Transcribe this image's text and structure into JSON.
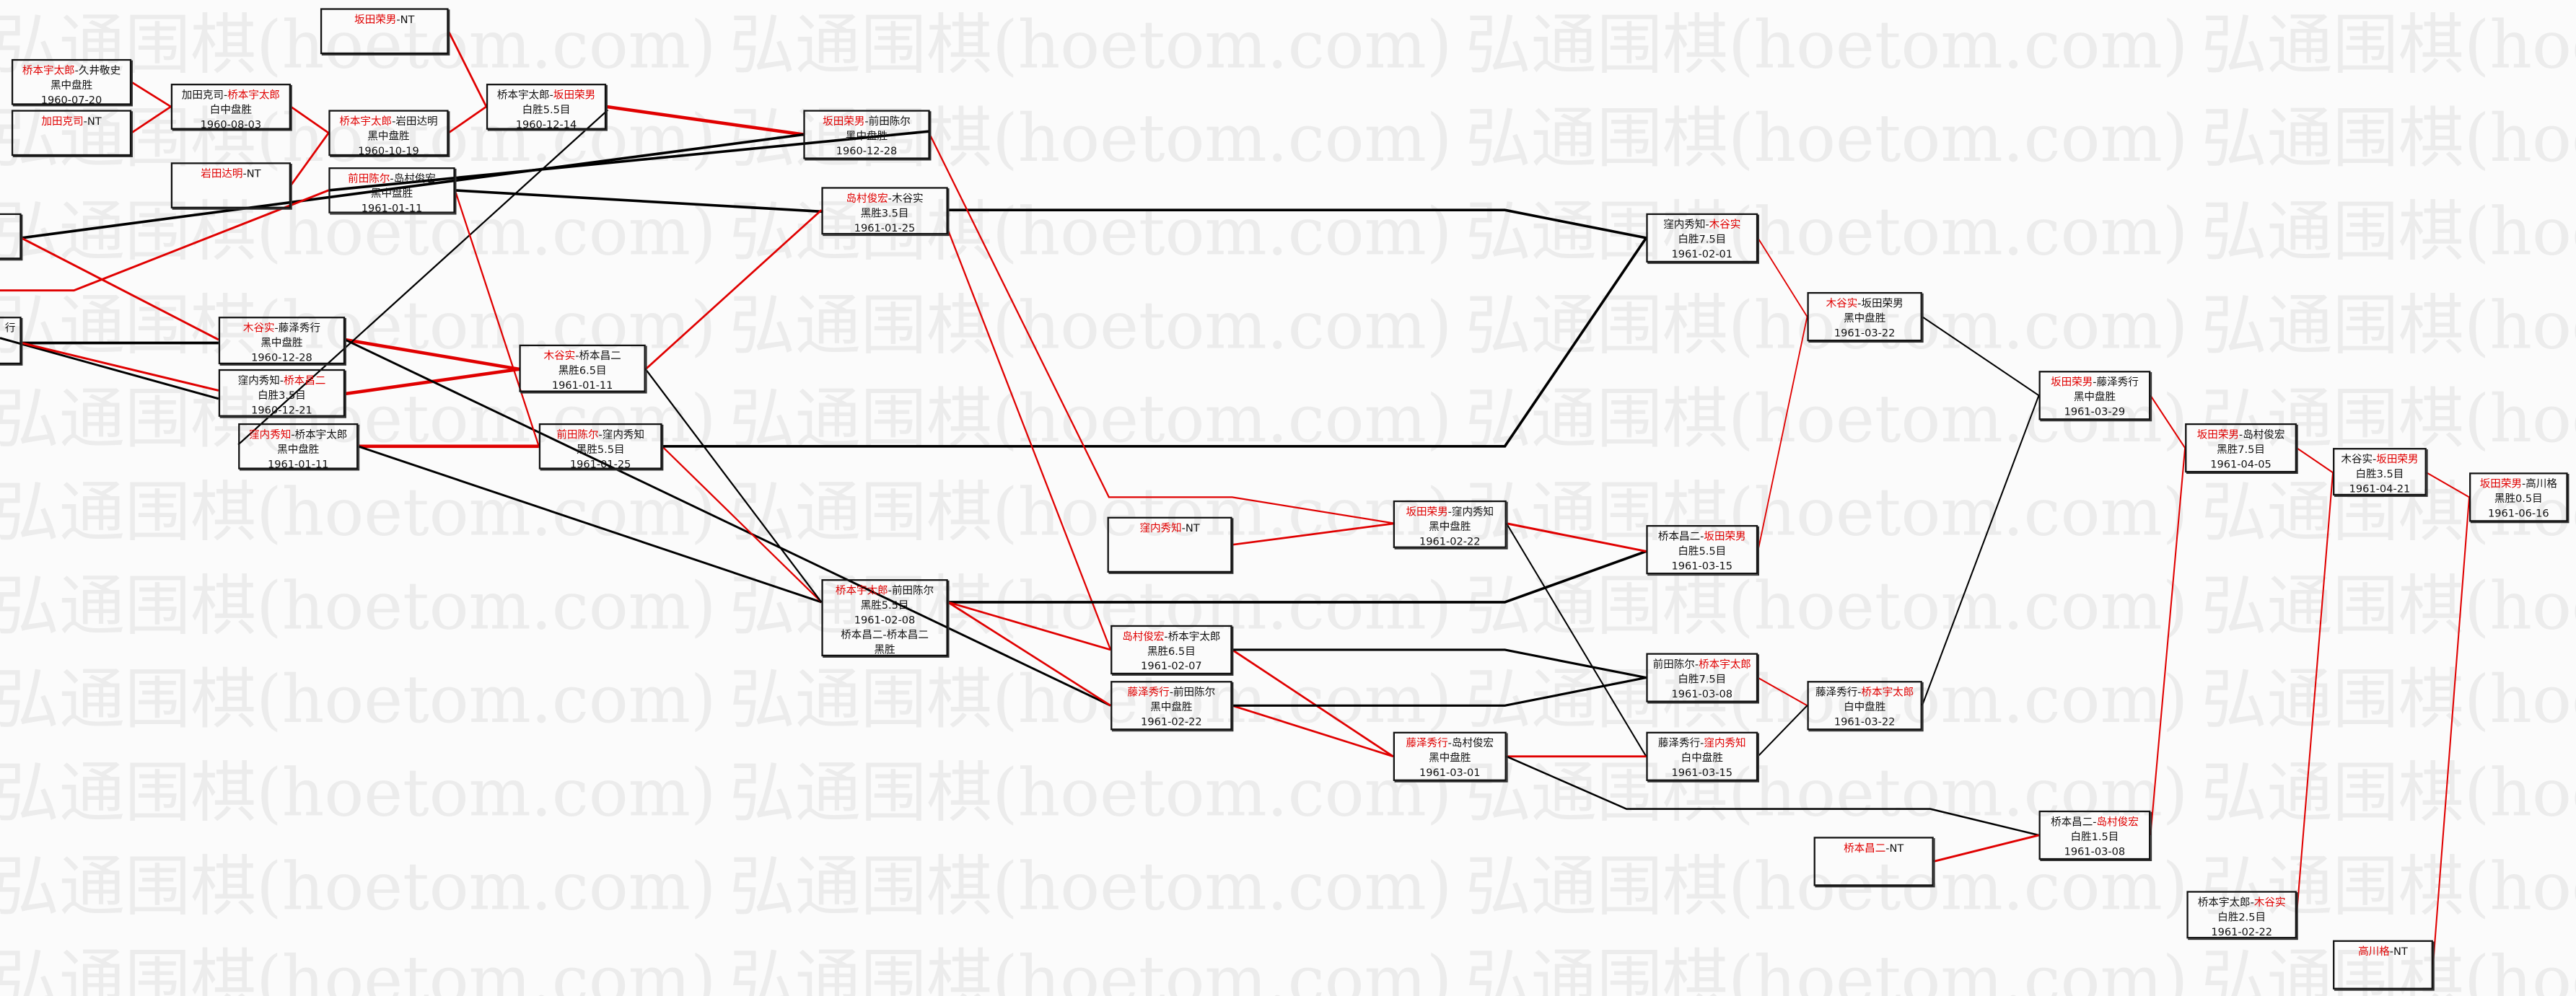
{
  "watermark": "弘通围棋(hoetom.com)",
  "colors": {
    "winner": "#e00000",
    "loser_line": "#000000",
    "winner_line": "#e00000"
  },
  "boxes": [
    {
      "id": "A",
      "nt": "坂田荣男"
    },
    {
      "id": "B",
      "a": "桥本宇太郎",
      "b": "久井敬史",
      "win": "a",
      "result": "黑中盘胜",
      "date": "1960-07-20"
    },
    {
      "id": "C",
      "nt": "加田克司"
    },
    {
      "id": "D",
      "a": "加田克司",
      "b": "桥本宇太郎",
      "win": "b",
      "result": "白中盘胜",
      "date": "1960-08-03"
    },
    {
      "id": "E",
      "a": "桥本宇太郎",
      "b": "岩田达明",
      "win": "a",
      "result": "黑中盘胜",
      "date": "1960-10-19"
    },
    {
      "id": "G",
      "nt": "岩田达明"
    },
    {
      "id": "F",
      "a": "前田陈尔",
      "b": "岛村俊宏",
      "win": "a",
      "result": "黑中盘胜",
      "date": "1961-01-11"
    },
    {
      "id": "H",
      "a": "桥本宇太郎",
      "b": "坂田荣男",
      "win": "b",
      "result": "白胜5.5目",
      "date": "1960-12-14"
    },
    {
      "id": "I",
      "a": "坂田荣男",
      "b": "前田陈尔",
      "win": "a",
      "result": "黑中盘胜",
      "date": "1960-12-28"
    },
    {
      "id": "J",
      "a": "岛村俊宏",
      "b": "木谷实",
      "win": "a",
      "result": "黑胜3.5目",
      "date": "1961-01-25"
    },
    {
      "id": "K"
    },
    {
      "id": "L",
      "partial": "行"
    },
    {
      "id": "M",
      "a": "木谷实",
      "b": "藤泽秀行",
      "win": "a",
      "result": "黑中盘胜",
      "date": "1960-12-28"
    },
    {
      "id": "N",
      "a": "窪内秀知",
      "b": "桥本昌二",
      "win": "b",
      "result": "白胜3.5目",
      "date": "1960-12-21"
    },
    {
      "id": "O",
      "a": "窪内秀知",
      "b": "桥本宇太郎",
      "win": "a",
      "result": "黑中盘胜",
      "date": "1961-01-11"
    },
    {
      "id": "P",
      "a": "木谷实",
      "b": "桥本昌二",
      "win": "a",
      "result": "黑胜6.5目",
      "date": "1961-01-11"
    },
    {
      "id": "Q",
      "a": "前田陈尔",
      "b": "窪内秀知",
      "win": "a",
      "result": "黑胜5.5目",
      "date": "1961-01-25"
    },
    {
      "id": "R",
      "a": "桥本宇太郎",
      "b": "前田陈尔",
      "win": "a",
      "result": "黑胜5.5目",
      "date": "1961-02-08",
      "overlay_a": "桥本昌二",
      "overlay_b": "桥本昌二",
      "overlay_result": "黑胜"
    },
    {
      "id": "S",
      "nt": "窪内秀知"
    },
    {
      "id": "T",
      "a": "坂田荣男",
      "b": "窪内秀知",
      "win": "a",
      "result": "黑中盘胜",
      "date": "1961-02-22"
    },
    {
      "id": "U",
      "a": "岛村俊宏",
      "b": "桥本宇太郎",
      "win": "a",
      "result": "黑胜6.5目",
      "date": "1961-02-07"
    },
    {
      "id": "V",
      "a": "藤泽秀行",
      "b": "前田陈尔",
      "win": "a",
      "result": "黑中盘胜",
      "date": "1961-02-22"
    },
    {
      "id": "W",
      "a": "藤泽秀行",
      "b": "岛村俊宏",
      "win": "a",
      "result": "黑中盘胜",
      "date": "1961-03-01"
    },
    {
      "id": "X",
      "a": "窪内秀知",
      "b": "木谷实",
      "win": "b",
      "result": "白胜7.5目",
      "date": "1961-02-01"
    },
    {
      "id": "Y",
      "a": "木谷实",
      "b": "坂田荣男",
      "win": "a",
      "result": "黑中盘胜",
      "date": "1961-03-22"
    },
    {
      "id": "Z",
      "a": "桥本昌二",
      "b": "坂田荣男",
      "win": "b",
      "result": "白胜5.5目",
      "date": "1961-03-15"
    },
    {
      "id": "AA",
      "a": "前田陈尔",
      "b": "桥本宇太郎",
      "win": "b",
      "result": "白胜7.5目",
      "date": "1961-03-08"
    },
    {
      "id": "AB",
      "a": "藤泽秀行",
      "b": "窪内秀知",
      "win": "b",
      "result": "白中盘胜",
      "date": "1961-03-15"
    },
    {
      "id": "AC",
      "a": "藤泽秀行",
      "b": "桥本宇太郎",
      "win": "b",
      "result": "白中盘胜",
      "date": "1961-03-22"
    },
    {
      "id": "AD",
      "a": "坂田荣男",
      "b": "藤泽秀行",
      "win": "a",
      "result": "黑中盘胜",
      "date": "1961-03-29"
    },
    {
      "id": "AE",
      "a": "坂田荣男",
      "b": "岛村俊宏",
      "win": "a",
      "result": "黑胜7.5目",
      "date": "1961-04-05"
    },
    {
      "id": "AF",
      "a": "木谷实",
      "b": "坂田荣男",
      "win": "b",
      "result": "白胜3.5目",
      "date": "1961-04-21"
    },
    {
      "id": "AG",
      "a": "坂田荣男",
      "b": "高川格",
      "win": "a",
      "result": "黑胜0.5目",
      "date": "1961-06-16"
    },
    {
      "id": "AH",
      "nt": "桥本昌二"
    },
    {
      "id": "AI",
      "a": "桥本昌二",
      "b": "岛村俊宏",
      "win": "b",
      "result": "白胜1.5目",
      "date": "1961-03-08"
    },
    {
      "id": "AJ",
      "a": "桥本宇太郎",
      "b": "木谷实",
      "win": "b",
      "result": "白胜2.5目",
      "date": "1961-02-22"
    },
    {
      "id": "AK",
      "nt": "高川格"
    }
  ]
}
